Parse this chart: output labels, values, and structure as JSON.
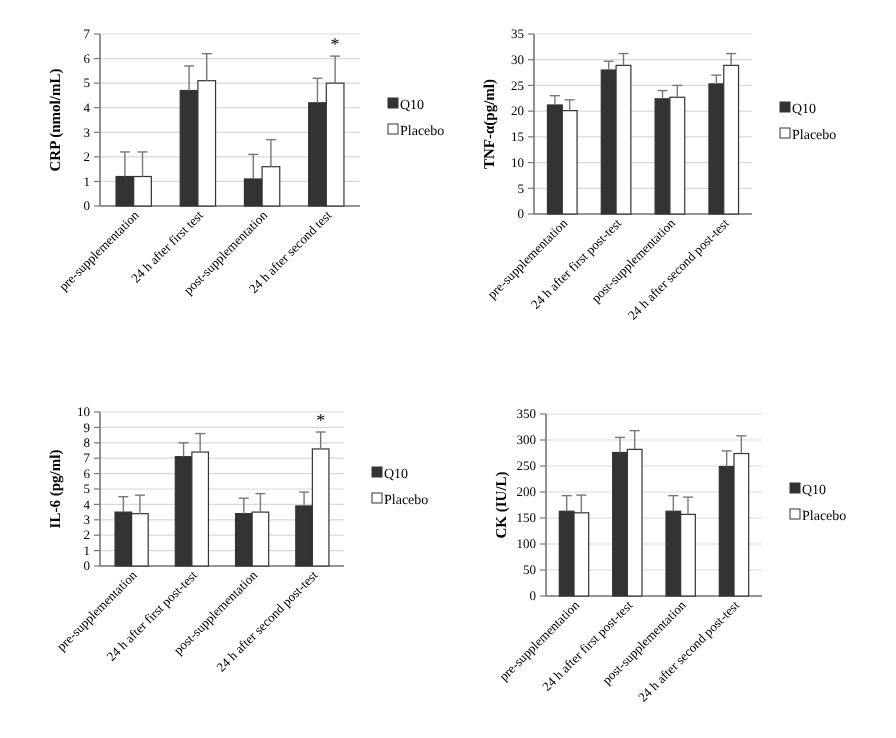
{
  "chart_data": [
    {
      "type": "bar",
      "ylabel": "CRP (nmol/mL)",
      "categories": [
        "pre-supplementation",
        "24 h  after first test",
        "post-supplementation",
        "24 h after second test"
      ],
      "ylim": [
        0,
        7
      ],
      "yticks": [
        0,
        1,
        2,
        3,
        4,
        5,
        6,
        7
      ],
      "grid": "y",
      "legend": "right",
      "series": [
        {
          "name": "Q10",
          "color": "#333333",
          "values": [
            1.2,
            4.7,
            1.1,
            4.2
          ],
          "errors": [
            [
              1.2,
              2.2
            ],
            [
              4.7,
              5.7
            ],
            [
              1.1,
              2.1
            ],
            [
              4.2,
              5.2
            ]
          ]
        },
        {
          "name": "Placebo",
          "color": "#ffffff",
          "values": [
            1.2,
            5.1,
            1.6,
            5.0
          ],
          "errors": [
            [
              1.2,
              2.2
            ],
            [
              5.1,
              6.2
            ],
            [
              1.6,
              2.7
            ],
            [
              5.0,
              6.1
            ]
          ]
        }
      ],
      "annotations": [
        "*"
      ]
    },
    {
      "type": "bar",
      "ylabel": "TNF-α(pg/ml)",
      "categories": [
        "pre-supplementation",
        "24 h after first post-test",
        "post-supplementation",
        "24 h after second post-test"
      ],
      "ylim": [
        0,
        35
      ],
      "yticks": [
        0,
        5,
        10,
        15,
        20,
        25,
        30,
        35
      ],
      "grid": "y",
      "legend": "right",
      "series": [
        {
          "name": "Q10",
          "color": "#333333",
          "values": [
            21.2,
            28,
            22.4,
            25.3
          ],
          "errors": [
            [
              21.2,
              23
            ],
            [
              28,
              29.7
            ],
            [
              22.4,
              24
            ],
            [
              25.3,
              27
            ]
          ]
        },
        {
          "name": "Placebo",
          "color": "#ffffff",
          "values": [
            20.1,
            28.9,
            22.7,
            28.9
          ],
          "errors": [
            [
              20.1,
              22.2
            ],
            [
              28.9,
              31.2
            ],
            [
              22.7,
              25
            ],
            [
              28.9,
              31.2
            ]
          ]
        }
      ]
    },
    {
      "type": "bar",
      "ylabel": "IL-6 (pg/ml)",
      "categories": [
        "pre-supplementation",
        "24 h after first post-test",
        "post-supplementation",
        "24 h after second post-test"
      ],
      "ylim": [
        0,
        10
      ],
      "yticks": [
        0,
        1,
        2,
        3,
        4,
        5,
        6,
        7,
        8,
        9,
        10
      ],
      "grid": "y",
      "legend": "right",
      "series": [
        {
          "name": "Q10",
          "color": "#333333",
          "values": [
            3.5,
            7.1,
            3.4,
            3.9
          ],
          "errors": [
            [
              3.5,
              4.5
            ],
            [
              7.1,
              8.0
            ],
            [
              3.4,
              4.4
            ],
            [
              3.9,
              4.8
            ]
          ]
        },
        {
          "name": "Placebo",
          "color": "#ffffff",
          "values": [
            3.4,
            7.4,
            3.5,
            7.6
          ],
          "errors": [
            [
              3.4,
              4.6
            ],
            [
              7.4,
              8.6
            ],
            [
              3.5,
              4.7
            ],
            [
              7.6,
              8.7
            ]
          ]
        }
      ],
      "annotations": [
        "*"
      ]
    },
    {
      "type": "bar",
      "ylabel": "CK (IU/L)",
      "categories": [
        "pre-supplementation",
        "24 h after first post-test",
        "post-supplementation",
        "24 h after second post-test"
      ],
      "ylim": [
        0,
        350
      ],
      "yticks": [
        0,
        50,
        100,
        150,
        200,
        250,
        300,
        350
      ],
      "grid": "y",
      "legend": "right",
      "series": [
        {
          "name": "Q10",
          "color": "#333333",
          "values": [
            163,
            276,
            163,
            249
          ],
          "errors": [
            [
              163,
              193
            ],
            [
              276,
              305
            ],
            [
              163,
              193
            ],
            [
              249,
              279
            ]
          ]
        },
        {
          "name": "Placebo",
          "color": "#ffffff",
          "values": [
            160,
            282,
            157,
            274
          ],
          "errors": [
            [
              160,
              194
            ],
            [
              282,
              318
            ],
            [
              157,
              190
            ],
            [
              274,
              308
            ]
          ]
        }
      ]
    }
  ]
}
